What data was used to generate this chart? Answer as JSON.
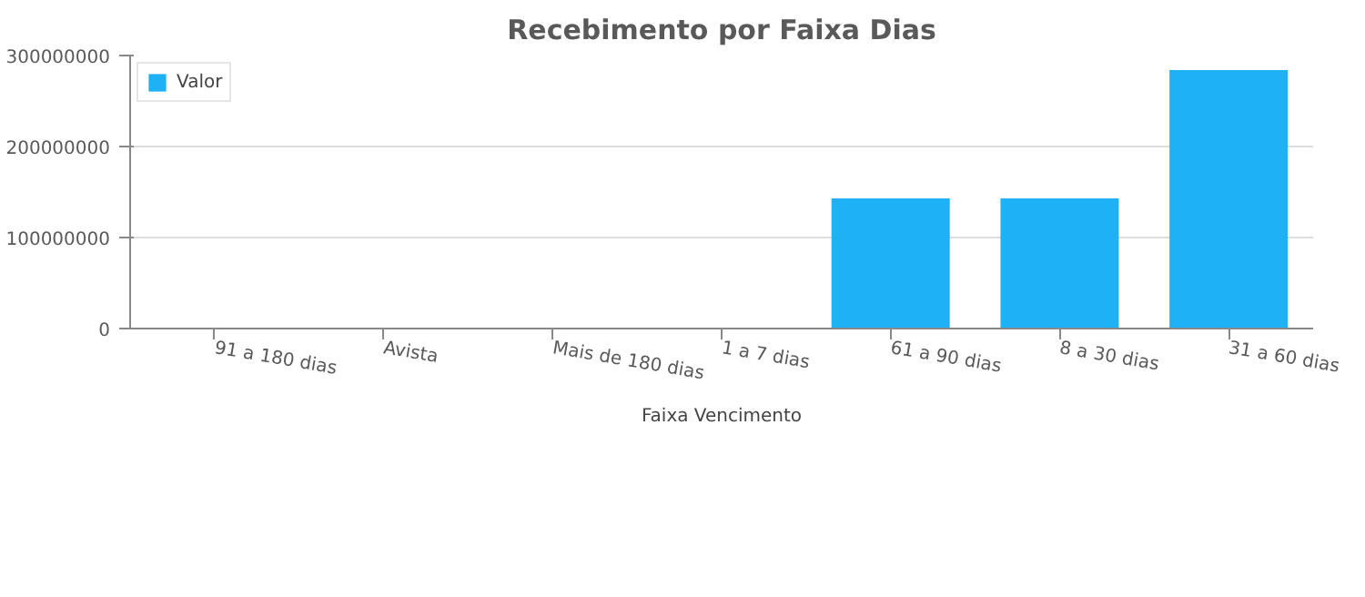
{
  "chart_data": {
    "type": "bar",
    "title": "Recebimento por Faixa Dias",
    "xlabel": "Faixa Vencimento",
    "categories": [
      "91 a 180 dias",
      "Avista",
      "Mais de 180 dias",
      "1 a 7 dias",
      "61 a 90 dias",
      "8 a 30 dias",
      "31 a 60 dias"
    ],
    "series": [
      {
        "name": "Valor",
        "color": "#1eb1f5",
        "values": [
          0,
          0,
          0,
          0,
          143000000,
          143000000,
          284000000
        ]
      }
    ],
    "ylim": [
      0,
      300000000
    ],
    "yticks": [
      0,
      100000000,
      200000000,
      300000000
    ],
    "grid": "y",
    "legend": "top left"
  }
}
